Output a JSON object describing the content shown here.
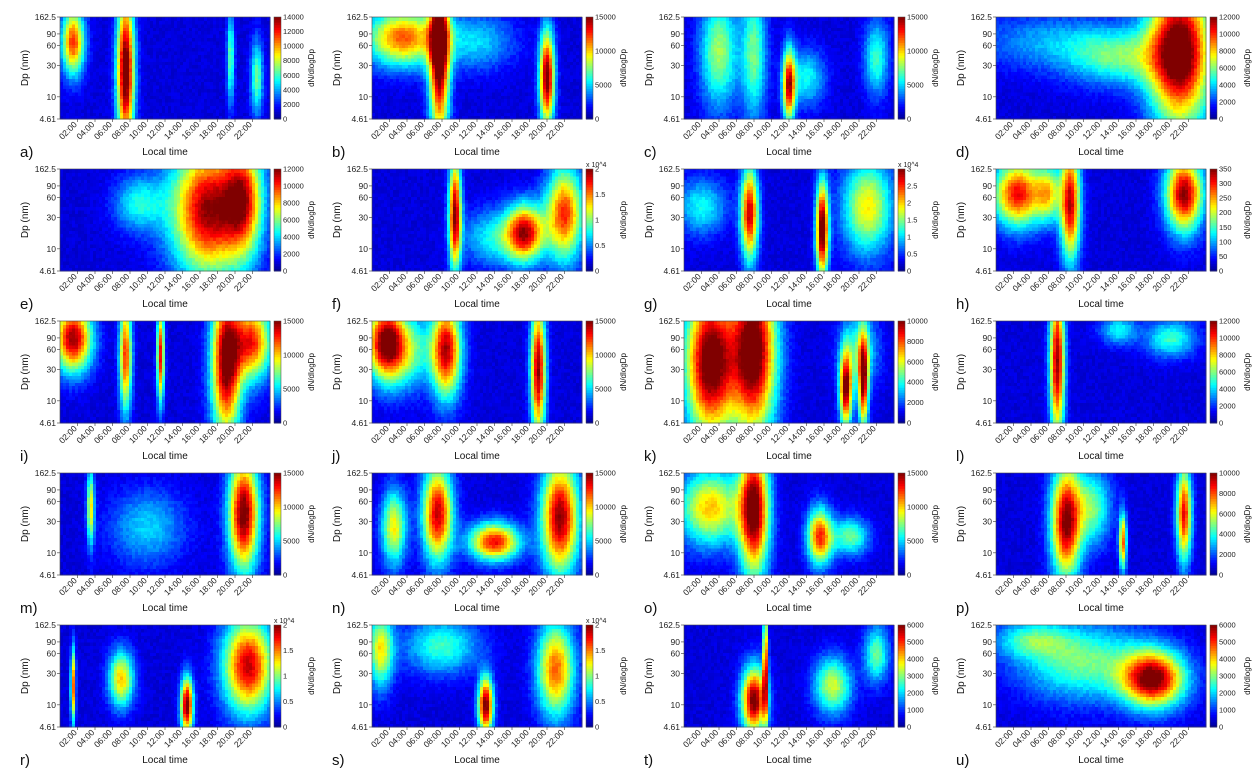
{
  "chart_data": {
    "type": "heatmap",
    "shared": {
      "xlabel": "Local time",
      "ylabel": "Dp (nm)",
      "colorbar_label": "dN/dlogDp",
      "x_ticks": [
        "02:00",
        "04:00",
        "06:00",
        "08:00",
        "10:00",
        "12:00",
        "14:00",
        "16:00",
        "18:00",
        "20:00",
        "22:00"
      ],
      "y_ticks": [
        "162.5",
        "90",
        "60",
        "30",
        "10",
        "4.61"
      ],
      "y_tick_values": [
        162.5,
        90,
        60,
        30,
        10,
        4.61
      ],
      "y_scale": "log",
      "colormap": [
        "#00008f",
        "#0000ff",
        "#0080ff",
        "#00ffff",
        "#80ff80",
        "#ffff00",
        "#ff8000",
        "#ff0000",
        "#800000"
      ]
    },
    "panels": [
      {
        "letter": "a)",
        "vmax": 14000,
        "cb_ticks": [
          "14000",
          "12000",
          "10000",
          "8000",
          "6000",
          "4000",
          "2000",
          "0"
        ],
        "multiplier": "",
        "blobs": [
          {
            "x": 1.5,
            "y": 70,
            "w": 0.9,
            "s": 0.35,
            "i": 0.75
          },
          {
            "x": 7.5,
            "y": 25,
            "w": 0.7,
            "s": 0.8,
            "i": 1.0
          },
          {
            "x": 19.5,
            "y": 40,
            "w": 0.3,
            "s": 0.5,
            "i": 0.4
          },
          {
            "x": 22.5,
            "y": 20,
            "w": 0.5,
            "s": 0.4,
            "i": 0.4
          }
        ]
      },
      {
        "letter": "b)",
        "vmax": 15000,
        "cb_ticks": [
          "15000",
          "10000",
          "5000",
          "0"
        ],
        "multiplier": "",
        "blobs": [
          {
            "x": 3.5,
            "y": 80,
            "w": 3.0,
            "s": 0.3,
            "i": 0.7
          },
          {
            "x": 7.7,
            "y": 45,
            "w": 0.8,
            "s": 0.9,
            "i": 1.0
          },
          {
            "x": 20,
            "y": 20,
            "w": 0.6,
            "s": 0.5,
            "i": 0.95
          },
          {
            "x": 12,
            "y": 70,
            "w": 3,
            "s": 0.3,
            "i": 0.25
          }
        ]
      },
      {
        "letter": "c)",
        "vmax": 15000,
        "cb_ticks": [
          "15000",
          "10000",
          "5000",
          "0"
        ],
        "multiplier": "",
        "blobs": [
          {
            "x": 4,
            "y": 50,
            "w": 1.5,
            "s": 0.6,
            "i": 0.45
          },
          {
            "x": 8,
            "y": 45,
            "w": 1.0,
            "s": 0.7,
            "i": 0.4
          },
          {
            "x": 12,
            "y": 15,
            "w": 0.5,
            "s": 0.4,
            "i": 0.8
          },
          {
            "x": 14,
            "y": 20,
            "w": 1.5,
            "s": 0.3,
            "i": 0.3
          },
          {
            "x": 22,
            "y": 40,
            "w": 1.0,
            "s": 0.4,
            "i": 0.35
          }
        ]
      },
      {
        "letter": "d)",
        "vmax": 12000,
        "cb_ticks": [
          "12000",
          "10000",
          "8000",
          "6000",
          "4000",
          "2000",
          "0"
        ],
        "multiplier": "",
        "blobs": [
          {
            "x": 21,
            "y": 50,
            "w": 2.5,
            "s": 0.8,
            "i": 1.0
          },
          {
            "x": 14,
            "y": 40,
            "w": 4,
            "s": 0.3,
            "i": 0.35
          },
          {
            "x": 6,
            "y": 70,
            "w": 6,
            "s": 0.3,
            "i": 0.2
          }
        ]
      },
      {
        "letter": "e)",
        "vmax": 12000,
        "cb_ticks": [
          "12000",
          "10000",
          "8000",
          "6000",
          "4000",
          "2000",
          "0"
        ],
        "multiplier": "",
        "blobs": [
          {
            "x": 17,
            "y": 40,
            "w": 3.0,
            "s": 0.7,
            "i": 0.9
          },
          {
            "x": 21,
            "y": 60,
            "w": 1.5,
            "s": 0.6,
            "i": 0.6
          },
          {
            "x": 9,
            "y": 50,
            "w": 2.0,
            "s": 0.3,
            "i": 0.3
          }
        ]
      },
      {
        "letter": "f)",
        "vmax": 20000,
        "cb_ticks": [
          "2",
          "1.5",
          "1",
          "0.5",
          "0"
        ],
        "multiplier": "x 10^4",
        "blobs": [
          {
            "x": 9.5,
            "y": 35,
            "w": 0.5,
            "s": 0.6,
            "i": 0.9
          },
          {
            "x": 17.5,
            "y": 18,
            "w": 1.5,
            "s": 0.3,
            "i": 0.8
          },
          {
            "x": 22,
            "y": 35,
            "w": 1.5,
            "s": 0.5,
            "i": 0.75
          },
          {
            "x": 14,
            "y": 15,
            "w": 2.5,
            "s": 0.3,
            "i": 0.3
          }
        ]
      },
      {
        "letter": "g)",
        "vmax": 30000,
        "cb_ticks": [
          "3",
          "2.5",
          "2",
          "1.5",
          "1",
          "0.5",
          "0"
        ],
        "multiplier": "x 10^4",
        "blobs": [
          {
            "x": 7.5,
            "y": 35,
            "w": 0.7,
            "s": 0.5,
            "i": 0.85
          },
          {
            "x": 15.8,
            "y": 20,
            "w": 0.5,
            "s": 0.5,
            "i": 1.0
          },
          {
            "x": 21,
            "y": 45,
            "w": 2.0,
            "s": 0.5,
            "i": 0.55
          },
          {
            "x": 2,
            "y": 45,
            "w": 2,
            "s": 0.3,
            "i": 0.3
          }
        ]
      },
      {
        "letter": "h)",
        "vmax": 350,
        "cb_ticks": [
          "350",
          "300",
          "250",
          "200",
          "150",
          "100",
          "50",
          "0"
        ],
        "multiplier": "",
        "blobs": [
          {
            "x": 2.5,
            "y": 70,
            "w": 2.0,
            "s": 0.35,
            "i": 0.8
          },
          {
            "x": 8.5,
            "y": 50,
            "w": 0.8,
            "s": 0.6,
            "i": 0.85
          },
          {
            "x": 21.5,
            "y": 70,
            "w": 1.5,
            "s": 0.4,
            "i": 0.9
          },
          {
            "x": 6,
            "y": 70,
            "w": 1,
            "s": 0.3,
            "i": 0.45
          }
        ]
      },
      {
        "letter": "i)",
        "vmax": 15000,
        "cb_ticks": [
          "15000",
          "10000",
          "5000",
          "0"
        ],
        "multiplier": "",
        "blobs": [
          {
            "x": 1.5,
            "y": 90,
            "w": 1.5,
            "s": 0.35,
            "i": 0.9
          },
          {
            "x": 7.5,
            "y": 50,
            "w": 0.5,
            "s": 0.6,
            "i": 0.75
          },
          {
            "x": 11.5,
            "y": 50,
            "w": 0.3,
            "s": 0.5,
            "i": 0.8
          },
          {
            "x": 19,
            "y": 40,
            "w": 1.2,
            "s": 0.8,
            "i": 0.95
          },
          {
            "x": 22,
            "y": 80,
            "w": 1.5,
            "s": 0.4,
            "i": 0.75
          }
        ]
      },
      {
        "letter": "j)",
        "vmax": 15000,
        "cb_ticks": [
          "15000",
          "10000",
          "5000",
          "0"
        ],
        "multiplier": "",
        "blobs": [
          {
            "x": 1.5,
            "y": 80,
            "w": 1.5,
            "s": 0.4,
            "i": 0.85
          },
          {
            "x": 8.5,
            "y": 60,
            "w": 1.2,
            "s": 0.5,
            "i": 0.85
          },
          {
            "x": 19,
            "y": 30,
            "w": 0.6,
            "s": 0.7,
            "i": 0.9
          },
          {
            "x": 4,
            "y": 60,
            "w": 2,
            "s": 0.4,
            "i": 0.4
          }
        ]
      },
      {
        "letter": "k)",
        "vmax": 10000,
        "cb_ticks": [
          "10000",
          "8000",
          "6000",
          "4000",
          "2000",
          "0"
        ],
        "multiplier": "",
        "blobs": [
          {
            "x": 3,
            "y": 40,
            "w": 2.0,
            "s": 0.8,
            "i": 1.0
          },
          {
            "x": 8,
            "y": 60,
            "w": 1.8,
            "s": 0.9,
            "i": 1.0
          },
          {
            "x": 18.5,
            "y": 15,
            "w": 0.5,
            "s": 0.4,
            "i": 0.9
          },
          {
            "x": 20.5,
            "y": 20,
            "w": 0.4,
            "s": 0.5,
            "i": 0.85
          },
          {
            "x": 20,
            "y": 60,
            "w": 1.5,
            "s": 0.4,
            "i": 0.35
          }
        ]
      },
      {
        "letter": "l)",
        "vmax": 12000,
        "cb_ticks": [
          "12000",
          "10000",
          "8000",
          "6000",
          "4000",
          "2000",
          "0"
        ],
        "multiplier": "",
        "blobs": [
          {
            "x": 7,
            "y": 40,
            "w": 0.6,
            "s": 0.8,
            "i": 0.9
          },
          {
            "x": 20,
            "y": 90,
            "w": 2.0,
            "s": 0.2,
            "i": 0.35
          },
          {
            "x": 14,
            "y": 120,
            "w": 1.5,
            "s": 0.15,
            "i": 0.3
          }
        ]
      },
      {
        "letter": "m)",
        "vmax": 15000,
        "cb_ticks": [
          "15000",
          "10000",
          "5000",
          "0"
        ],
        "multiplier": "",
        "blobs": [
          {
            "x": 21,
            "y": 40,
            "w": 1.2,
            "s": 0.6,
            "i": 0.95
          },
          {
            "x": 3.5,
            "y": 50,
            "w": 0.3,
            "s": 0.4,
            "i": 0.55
          },
          {
            "x": 10,
            "y": 25,
            "w": 3,
            "s": 0.4,
            "i": 0.25
          }
        ]
      },
      {
        "letter": "n)",
        "vmax": 15000,
        "cb_ticks": [
          "15000",
          "10000",
          "5000",
          "0"
        ],
        "multiplier": "",
        "blobs": [
          {
            "x": 7.5,
            "y": 40,
            "w": 1.2,
            "s": 0.5,
            "i": 0.85
          },
          {
            "x": 14,
            "y": 15,
            "w": 2.0,
            "s": 0.2,
            "i": 0.8
          },
          {
            "x": 21.5,
            "y": 35,
            "w": 1.5,
            "s": 0.6,
            "i": 0.9
          },
          {
            "x": 2.5,
            "y": 25,
            "w": 1,
            "s": 0.4,
            "i": 0.55
          }
        ]
      },
      {
        "letter": "o)",
        "vmax": 15000,
        "cb_ticks": [
          "15000",
          "10000",
          "5000",
          "0"
        ],
        "multiplier": "",
        "blobs": [
          {
            "x": 8,
            "y": 45,
            "w": 1.2,
            "s": 0.7,
            "i": 0.95
          },
          {
            "x": 15.5,
            "y": 18,
            "w": 1.0,
            "s": 0.3,
            "i": 0.75
          },
          {
            "x": 3,
            "y": 50,
            "w": 2.5,
            "s": 0.4,
            "i": 0.6
          },
          {
            "x": 19,
            "y": 18,
            "w": 1.5,
            "s": 0.2,
            "i": 0.4
          }
        ]
      },
      {
        "letter": "p)",
        "vmax": 10000,
        "cb_ticks": [
          "10000",
          "8000",
          "6000",
          "4000",
          "2000",
          "0"
        ],
        "multiplier": "",
        "blobs": [
          {
            "x": 8,
            "y": 30,
            "w": 1.2,
            "s": 0.6,
            "i": 0.9
          },
          {
            "x": 14.5,
            "y": 15,
            "w": 0.3,
            "s": 0.3,
            "i": 0.7
          },
          {
            "x": 21.5,
            "y": 40,
            "w": 0.6,
            "s": 0.5,
            "i": 0.8
          },
          {
            "x": 11,
            "y": 50,
            "w": 1.5,
            "s": 0.4,
            "i": 0.4
          }
        ]
      },
      {
        "letter": "r)",
        "vmax": 20000,
        "cb_ticks": [
          "2",
          "1.5",
          "1",
          "0.5",
          "0"
        ],
        "multiplier": "x 10^4",
        "blobs": [
          {
            "x": 14.5,
            "y": 10,
            "w": 0.5,
            "s": 0.3,
            "i": 0.95
          },
          {
            "x": 21.5,
            "y": 40,
            "w": 2.0,
            "s": 0.5,
            "i": 0.85
          },
          {
            "x": 7,
            "y": 25,
            "w": 1,
            "s": 0.3,
            "i": 0.6
          },
          {
            "x": 1.5,
            "y": 20,
            "w": 0.2,
            "s": 0.4,
            "i": 0.7
          }
        ]
      },
      {
        "letter": "s)",
        "vmax": 20000,
        "cb_ticks": [
          "2",
          "1.5",
          "1",
          "0.5",
          "0"
        ],
        "multiplier": "x 10^4",
        "blobs": [
          {
            "x": 13,
            "y": 10,
            "w": 0.6,
            "s": 0.3,
            "i": 0.95
          },
          {
            "x": 21,
            "y": 35,
            "w": 1.5,
            "s": 0.5,
            "i": 0.7
          },
          {
            "x": 1,
            "y": 70,
            "w": 1.0,
            "s": 0.4,
            "i": 0.55
          },
          {
            "x": 8,
            "y": 80,
            "w": 3,
            "s": 0.3,
            "i": 0.35
          }
        ]
      },
      {
        "letter": "t)",
        "vmax": 6000,
        "cb_ticks": [
          "6000",
          "5000",
          "4000",
          "3000",
          "2000",
          "1000",
          "0"
        ],
        "multiplier": "",
        "blobs": [
          {
            "x": 8,
            "y": 12,
            "w": 1.0,
            "s": 0.35,
            "i": 0.95
          },
          {
            "x": 9.3,
            "y": 40,
            "w": 0.2,
            "s": 0.6,
            "i": 0.8
          },
          {
            "x": 17,
            "y": 20,
            "w": 1.5,
            "s": 0.3,
            "i": 0.5
          },
          {
            "x": 22,
            "y": 60,
            "w": 1,
            "s": 0.3,
            "i": 0.4
          }
        ]
      },
      {
        "letter": "u)",
        "vmax": 6000,
        "cb_ticks": [
          "6000",
          "5000",
          "4000",
          "3000",
          "2000",
          "1000",
          "0"
        ],
        "multiplier": "",
        "blobs": [
          {
            "x": 18,
            "y": 25,
            "w": 2.5,
            "s": 0.3,
            "i": 0.9
          },
          {
            "x": 10,
            "y": 45,
            "w": 5,
            "s": 0.4,
            "i": 0.4
          },
          {
            "x": 4,
            "y": 100,
            "w": 3,
            "s": 0.2,
            "i": 0.3
          }
        ]
      }
    ]
  }
}
